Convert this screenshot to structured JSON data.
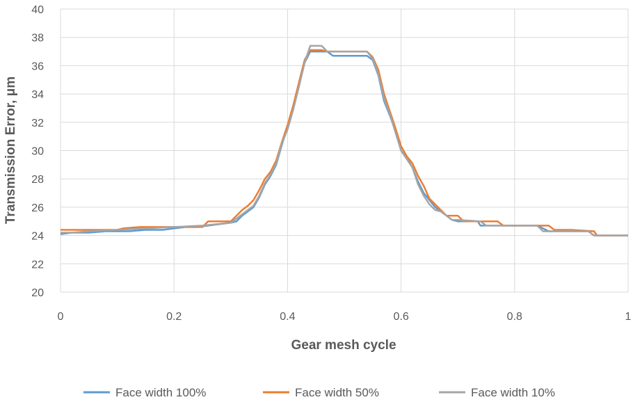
{
  "chart_data": {
    "type": "line",
    "title": "",
    "xlabel": "Gear mesh cycle",
    "ylabel": "Transmission Error, μm",
    "xlim": [
      0,
      1
    ],
    "ylim": [
      20,
      40
    ],
    "xticks": [
      0,
      0.2,
      0.4,
      0.6,
      0.8,
      1
    ],
    "xtick_labels": [
      "0",
      "0.2",
      "0.4",
      "0.6",
      "0.8",
      "1"
    ],
    "yticks": [
      20,
      22,
      24,
      26,
      28,
      30,
      32,
      34,
      36,
      38,
      40
    ],
    "ytick_labels": [
      "20",
      "22",
      "24",
      "26",
      "28",
      "30",
      "32",
      "34",
      "36",
      "38",
      "40"
    ],
    "grid": true,
    "legend_position": "bottom",
    "series": [
      {
        "name": "Face width 100%",
        "color": "#5b9bd5",
        "x": [
          0,
          0.02,
          0.05,
          0.08,
          0.1,
          0.12,
          0.15,
          0.18,
          0.2,
          0.22,
          0.24,
          0.26,
          0.28,
          0.3,
          0.31,
          0.32,
          0.33,
          0.34,
          0.35,
          0.36,
          0.37,
          0.38,
          0.39,
          0.4,
          0.41,
          0.42,
          0.43,
          0.44,
          0.45,
          0.46,
          0.47,
          0.48,
          0.49,
          0.5,
          0.52,
          0.54,
          0.55,
          0.56,
          0.57,
          0.58,
          0.59,
          0.6,
          0.61,
          0.62,
          0.63,
          0.64,
          0.65,
          0.66,
          0.67,
          0.68,
          0.69,
          0.7,
          0.72,
          0.735,
          0.74,
          0.75,
          0.78,
          0.8,
          0.84,
          0.86,
          0.9,
          0.93,
          0.94,
          0.96,
          1.0
        ],
        "y": [
          24.1,
          24.2,
          24.2,
          24.3,
          24.3,
          24.3,
          24.4,
          24.4,
          24.5,
          24.6,
          24.6,
          24.7,
          24.8,
          24.9,
          25.0,
          25.4,
          25.7,
          26.0,
          26.7,
          27.6,
          28.2,
          29.0,
          30.4,
          31.7,
          33.0,
          34.6,
          36.2,
          37.0,
          37.0,
          37.0,
          37.0,
          36.7,
          36.7,
          36.7,
          36.7,
          36.7,
          36.4,
          35.3,
          33.5,
          32.5,
          31.4,
          30.0,
          29.5,
          28.8,
          27.8,
          27.0,
          26.5,
          26.0,
          25.7,
          25.4,
          25.1,
          25.0,
          25.0,
          25.0,
          24.7,
          24.7,
          24.7,
          24.7,
          24.7,
          24.3,
          24.3,
          24.3,
          24.0,
          24.0,
          24.0
        ]
      },
      {
        "name": "Face width 50%",
        "color": "#ed7d31",
        "x": [
          0,
          0.01,
          0.02,
          0.05,
          0.1,
          0.11,
          0.14,
          0.2,
          0.25,
          0.26,
          0.3,
          0.31,
          0.32,
          0.33,
          0.34,
          0.35,
          0.36,
          0.37,
          0.38,
          0.39,
          0.4,
          0.41,
          0.42,
          0.43,
          0.44,
          0.45,
          0.46,
          0.47,
          0.5,
          0.54,
          0.55,
          0.56,
          0.57,
          0.58,
          0.59,
          0.6,
          0.61,
          0.62,
          0.63,
          0.64,
          0.65,
          0.66,
          0.67,
          0.68,
          0.7,
          0.71,
          0.72,
          0.75,
          0.77,
          0.78,
          0.8,
          0.86,
          0.87,
          0.9,
          0.94,
          0.945,
          0.96,
          1.0
        ],
        "y": [
          24.4,
          24.4,
          24.4,
          24.4,
          24.4,
          24.5,
          24.6,
          24.6,
          24.6,
          25.0,
          25.0,
          25.4,
          25.8,
          26.1,
          26.5,
          27.2,
          28.0,
          28.5,
          29.3,
          30.6,
          31.8,
          33.2,
          34.8,
          36.4,
          37.1,
          37.1,
          37.1,
          37.0,
          37.0,
          37.0,
          36.6,
          35.7,
          34.0,
          32.8,
          31.6,
          30.3,
          29.6,
          29.1,
          28.2,
          27.5,
          26.6,
          26.2,
          25.8,
          25.4,
          25.4,
          25.0,
          25.0,
          25.0,
          25.0,
          24.7,
          24.7,
          24.7,
          24.4,
          24.4,
          24.3,
          24.0,
          24.0,
          24.0
        ]
      },
      {
        "name": "Face width 10%",
        "color": "#a5a5a5",
        "x": [
          0,
          0.02,
          0.05,
          0.1,
          0.15,
          0.2,
          0.25,
          0.3,
          0.31,
          0.32,
          0.33,
          0.34,
          0.35,
          0.36,
          0.37,
          0.38,
          0.39,
          0.4,
          0.41,
          0.42,
          0.43,
          0.44,
          0.45,
          0.46,
          0.47,
          0.48,
          0.5,
          0.54,
          0.55,
          0.56,
          0.57,
          0.58,
          0.59,
          0.6,
          0.61,
          0.62,
          0.63,
          0.64,
          0.65,
          0.66,
          0.67,
          0.68,
          0.69,
          0.7,
          0.74,
          0.75,
          0.8,
          0.84,
          0.85,
          0.9,
          0.93,
          0.94,
          0.96,
          1.0
        ],
        "y": [
          24.2,
          24.2,
          24.3,
          24.4,
          24.5,
          24.6,
          24.7,
          24.9,
          25.2,
          25.5,
          25.8,
          26.1,
          26.8,
          27.7,
          28.3,
          29.1,
          30.5,
          31.5,
          32.9,
          34.5,
          36.2,
          37.4,
          37.4,
          37.4,
          37.0,
          37.0,
          37.0,
          37.0,
          36.5,
          35.4,
          33.7,
          32.6,
          31.3,
          30.0,
          29.4,
          28.8,
          27.6,
          26.8,
          26.2,
          25.8,
          25.7,
          25.4,
          25.1,
          25.1,
          25.0,
          24.7,
          24.7,
          24.7,
          24.3,
          24.3,
          24.3,
          24.0,
          24.0,
          24.0
        ]
      }
    ]
  }
}
